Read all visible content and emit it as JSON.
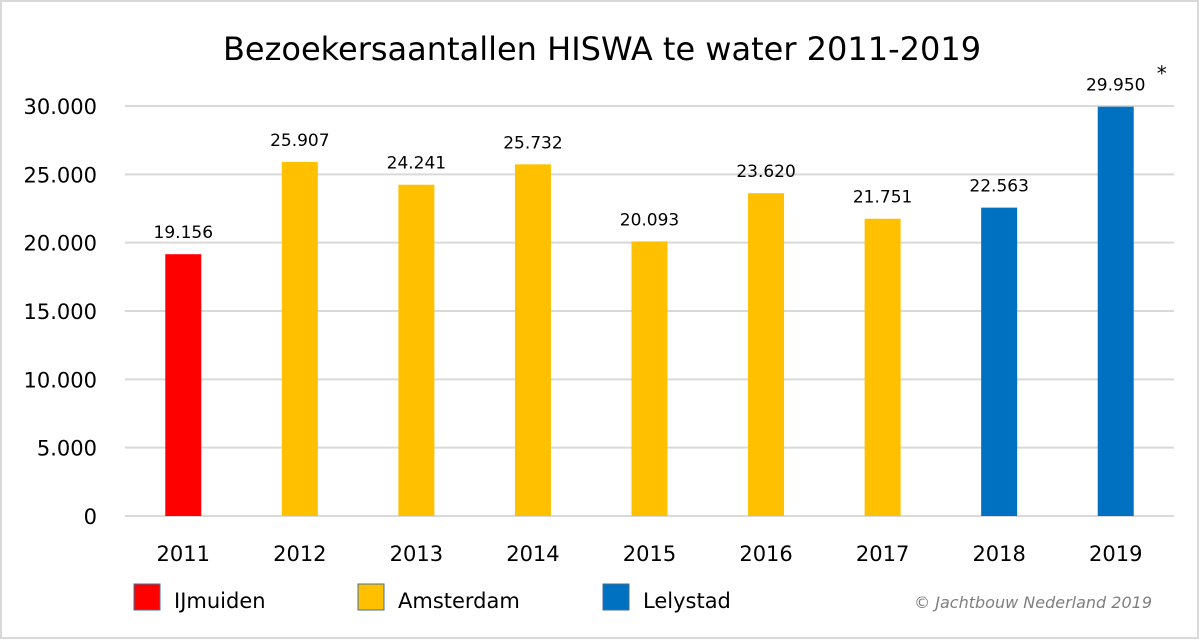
{
  "chart_data": {
    "type": "bar",
    "title": "Bezoekersaantallen HISWA te water 2011-2019",
    "xlabel": "",
    "ylabel": "",
    "categories": [
      "2011",
      "2012",
      "2013",
      "2014",
      "2015",
      "2016",
      "2017",
      "2018",
      "2019"
    ],
    "values": [
      19156,
      25907,
      24241,
      25732,
      20093,
      23620,
      21751,
      22563,
      29950
    ],
    "data_labels": [
      "19.156",
      "25.907",
      "24.241",
      "25.732",
      "20.093",
      "23.620",
      "21.751",
      "22.563",
      "29.950"
    ],
    "bar_location": [
      "IJmuiden",
      "Amsterdam",
      "Amsterdam",
      "Amsterdam",
      "Amsterdam",
      "Amsterdam",
      "Amsterdam",
      "Lelystad",
      "Lelystad"
    ],
    "ylim": [
      0,
      30000
    ],
    "yticks": [
      0,
      5000,
      10000,
      15000,
      20000,
      25000,
      30000
    ],
    "ytick_labels": [
      "0",
      "5.000",
      "10.000",
      "15.000",
      "20.000",
      "25.000",
      "30.000"
    ],
    "grid": true,
    "legend": {
      "placement": "bottom-left",
      "entries": [
        {
          "name": "IJmuiden",
          "color": "#ff0000"
        },
        {
          "name": "Amsterdam",
          "color": "#ffc000"
        },
        {
          "name": "Lelystad",
          "color": "#0070c0"
        }
      ]
    },
    "annotations": [
      {
        "text": "*",
        "attached_to": "2019"
      },
      {
        "text": "© Jachtbouw Nederland 2019",
        "placement": "bottom-right"
      }
    ]
  },
  "colors": {
    "IJmuiden": "#ff0000",
    "Amsterdam": "#ffc000",
    "Lelystad": "#0070c0",
    "gridline": "#d9d9d9",
    "copyright": "#7f7f7f"
  }
}
